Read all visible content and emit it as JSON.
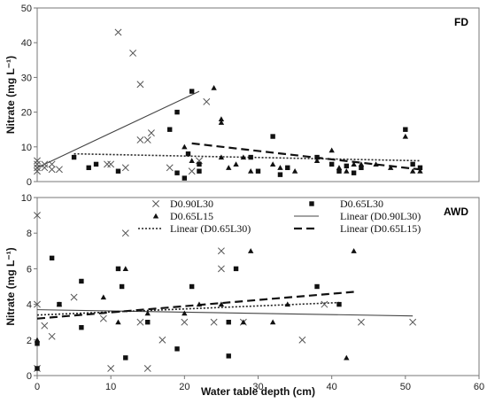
{
  "chart_data": [
    {
      "type": "scatter",
      "panel_label": "FD",
      "ylabel": "Nitrate (mg L⁻¹)",
      "xlim": [
        0,
        60
      ],
      "ylim": [
        0,
        50
      ],
      "yticks": [
        0,
        10,
        20,
        30,
        40,
        50
      ],
      "grid": false,
      "series": [
        {
          "key": "D0.90L30",
          "marker": "x",
          "points": [
            [
              0,
              3
            ],
            [
              0,
              4
            ],
            [
              0,
              5
            ],
            [
              0,
              6
            ],
            [
              1,
              4
            ],
            [
              1,
              5
            ],
            [
              2,
              3.5
            ],
            [
              2,
              5
            ],
            [
              3,
              3.5
            ],
            [
              9.5,
              5
            ],
            [
              10,
              5
            ],
            [
              11,
              43
            ],
            [
              12,
              4
            ],
            [
              13,
              37
            ],
            [
              14,
              28
            ],
            [
              14,
              12
            ],
            [
              15,
              12
            ],
            [
              15.5,
              14
            ],
            [
              18,
              4
            ],
            [
              21,
              3
            ],
            [
              22,
              6
            ],
            [
              23,
              23
            ]
          ]
        },
        {
          "key": "D0.65L30",
          "marker": "square",
          "points": [
            [
              5,
              7
            ],
            [
              7,
              4
            ],
            [
              8,
              5
            ],
            [
              11,
              3
            ],
            [
              18,
              15
            ],
            [
              19,
              20
            ],
            [
              19,
              2.5
            ],
            [
              20,
              1
            ],
            [
              20.5,
              8
            ],
            [
              21,
              26
            ],
            [
              22,
              5
            ],
            [
              22,
              3
            ],
            [
              29,
              7
            ],
            [
              30,
              3
            ],
            [
              32,
              13
            ],
            [
              33,
              2
            ],
            [
              34,
              4
            ],
            [
              38,
              7
            ],
            [
              40,
              5
            ],
            [
              41,
              3
            ],
            [
              42,
              4.5
            ],
            [
              43,
              2.5
            ],
            [
              44,
              4
            ],
            [
              50,
              15
            ],
            [
              51,
              5
            ],
            [
              52,
              4
            ]
          ]
        },
        {
          "key": "D0.65L15",
          "marker": "triangle",
          "points": [
            [
              20,
              10
            ],
            [
              21,
              6
            ],
            [
              24,
              27
            ],
            [
              25,
              18
            ],
            [
              25,
              17
            ],
            [
              25,
              7
            ],
            [
              26,
              4
            ],
            [
              27,
              5
            ],
            [
              28,
              7
            ],
            [
              29,
              3
            ],
            [
              32,
              5
            ],
            [
              33,
              4
            ],
            [
              35,
              3
            ],
            [
              38,
              6
            ],
            [
              40,
              9
            ],
            [
              41,
              4
            ],
            [
              42,
              3
            ],
            [
              43,
              5
            ],
            [
              44,
              5
            ],
            [
              46,
              5
            ],
            [
              48,
              4
            ],
            [
              50,
              13
            ],
            [
              51,
              3
            ],
            [
              52,
              3
            ]
          ]
        }
      ],
      "trendlines": [
        {
          "key": "D0.90L30",
          "style": "solid",
          "x": [
            0,
            22
          ],
          "y": [
            4,
            26
          ]
        },
        {
          "key": "D0.65L30",
          "style": "dotted",
          "x": [
            5,
            52
          ],
          "y": [
            8,
            6
          ]
        },
        {
          "key": "D0.65L15",
          "style": "dashed",
          "x": [
            21,
            52
          ],
          "y": [
            11,
            3.5
          ]
        }
      ]
    },
    {
      "type": "scatter",
      "panel_label": "AWD",
      "xlabel": "Water table depth (cm)",
      "ylabel": "Nitrate (mg L⁻¹)",
      "xlim": [
        0,
        60
      ],
      "ylim": [
        0,
        10
      ],
      "xticks": [
        0,
        10,
        20,
        30,
        40,
        50,
        60
      ],
      "yticks": [
        0,
        2,
        4,
        6,
        8,
        10
      ],
      "grid": false,
      "legend_position": "top",
      "series": [
        {
          "key": "D0.90L30",
          "name": "D0.90L30",
          "marker": "x",
          "points": [
            [
              0,
              9
            ],
            [
              0,
              4
            ],
            [
              0,
              0.4
            ],
            [
              1,
              2.8
            ],
            [
              2,
              2.2
            ],
            [
              5,
              4.4
            ],
            [
              9,
              3.2
            ],
            [
              10,
              0.4
            ],
            [
              12,
              8
            ],
            [
              14,
              3
            ],
            [
              15,
              0.4
            ],
            [
              17,
              2
            ],
            [
              20,
              3
            ],
            [
              24,
              3
            ],
            [
              25,
              7
            ],
            [
              25,
              6
            ],
            [
              28,
              3
            ],
            [
              36,
              2
            ],
            [
              39,
              4
            ],
            [
              44,
              3
            ],
            [
              51,
              3
            ]
          ]
        },
        {
          "key": "D0.65L30",
          "name": "D0.65L30",
          "marker": "square",
          "points": [
            [
              0,
              1.8
            ],
            [
              0,
              0.4
            ],
            [
              2,
              6.6
            ],
            [
              3,
              4
            ],
            [
              6,
              2.7
            ],
            [
              6,
              5.3
            ],
            [
              11,
              6
            ],
            [
              11.5,
              5
            ],
            [
              12,
              1
            ],
            [
              15,
              3
            ],
            [
              19,
              1.5
            ],
            [
              21,
              5
            ],
            [
              26,
              1.1
            ],
            [
              26,
              3
            ],
            [
              27,
              6
            ],
            [
              38,
              5
            ],
            [
              41,
              4
            ]
          ]
        },
        {
          "key": "D0.65L15",
          "name": "D0.65L15",
          "marker": "triangle",
          "points": [
            [
              0,
              2
            ],
            [
              3,
              4
            ],
            [
              9,
              4.4
            ],
            [
              11,
              3
            ],
            [
              12,
              6
            ],
            [
              15,
              3.5
            ],
            [
              20,
              3.5
            ],
            [
              22,
              4
            ],
            [
              25,
              4
            ],
            [
              28,
              3
            ],
            [
              29,
              7
            ],
            [
              32,
              3
            ],
            [
              34,
              4
            ],
            [
              42,
              1
            ],
            [
              43,
              7
            ]
          ]
        }
      ],
      "trendlines": [
        {
          "key": "D0.90L30",
          "name": "Linear (D0.90L30)",
          "style": "solid",
          "x": [
            0,
            51
          ],
          "y": [
            3.7,
            3.35
          ]
        },
        {
          "key": "D0.65L30",
          "name": "Linear (D0.65L30)",
          "style": "dotted",
          "x": [
            0,
            41
          ],
          "y": [
            3.4,
            4.1
          ]
        },
        {
          "key": "D0.65L15",
          "name": "Linear (D0.65L15)",
          "style": "dashed",
          "x": [
            0,
            43
          ],
          "y": [
            3.2,
            4.7
          ]
        }
      ]
    }
  ]
}
